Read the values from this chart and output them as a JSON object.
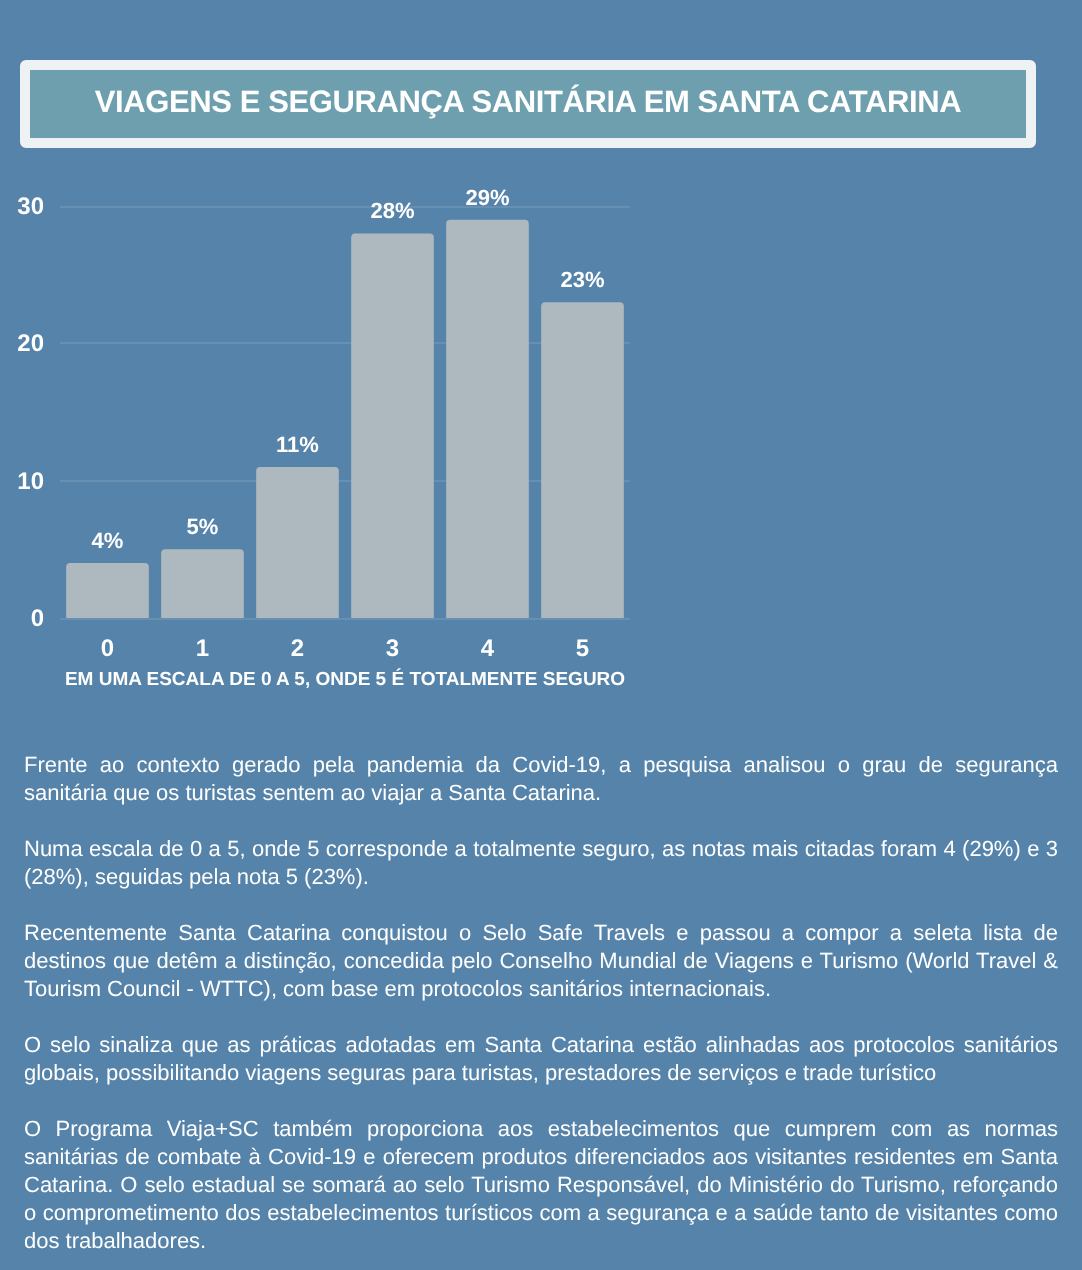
{
  "chart_data": {
    "type": "bar",
    "title": "VIAGENS E SEGURANÇA SANITÁRIA EM SANTA CATARINA",
    "xlabel": "EM UMA ESCALA DE 0 A 5, ONDE 5 É TOTALMENTE SEGURO",
    "categories": [
      "0",
      "1",
      "2",
      "3",
      "4",
      "5"
    ],
    "values": [
      4,
      5,
      11,
      28,
      29,
      23
    ],
    "value_labels": [
      "4%",
      "5%",
      "11%",
      "28%",
      "29%",
      "23%"
    ],
    "color": "#adb9be",
    "ylim": [
      0,
      30
    ],
    "yticks": [
      0,
      10,
      20,
      30
    ],
    "grid": "y",
    "annotations": [
      "Frente ao contexto gerado pela pandemia da Covid-19, a pesquisa analisou o grau de segurança sanitária que os turistas sentem ao viajar a Santa Catarina.",
      "Numa escala de 0 a 5, onde 5 corresponde a totalmente seguro, as notas mais citadas foram 4 (29%) e 3 (28%), seguidas pela nota 5 (23%).",
      "Recentemente Santa Catarina conquistou o Selo Safe Travels e passou a compor a seleta lista de destinos que detêm a distinção, concedida pelo Conselho Mundial de Viagens e Turismo (World Travel & Tourism Council - WTTC), com base em protocolos sanitários internacionais.",
      "O selo sinaliza que as práticas adotadas em Santa Catarina estão alinhadas aos protocolos sanitários globais, possibilitando viagens seguras para turistas, prestadores de serviços e trade turístico",
      "O Programa Viaja+SC também proporciona aos estabelecimentos que cumprem com as normas sanitárias de combate à Covid-19 e oferecem produtos diferenciados aos visitantes residentes em Santa Catarina. O selo estadual se somará ao selo Turismo Responsável, do Ministério do Turismo, reforçando o comprometimento dos estabelecimentos turísticos com a segurança e a saúde tanto de visitantes como dos trabalhadores."
    ]
  }
}
